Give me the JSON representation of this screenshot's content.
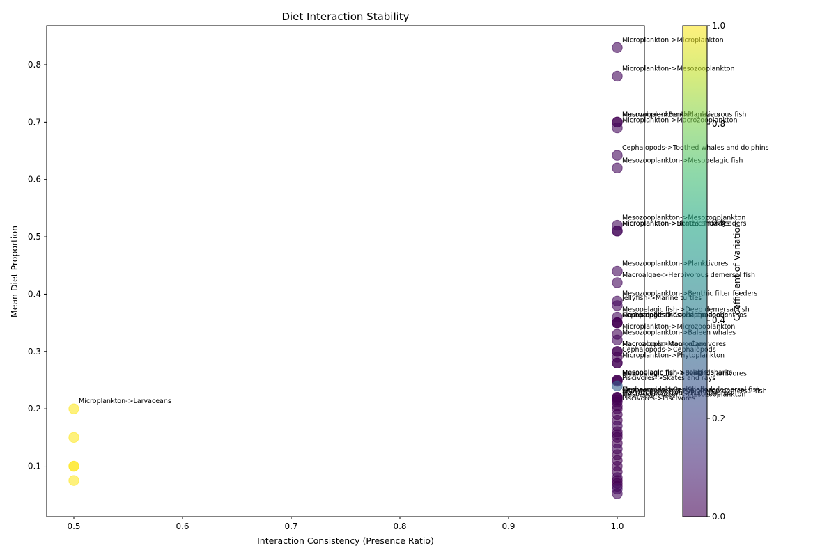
{
  "chart_data": {
    "type": "scatter",
    "title": "Diet Interaction Stability",
    "xlabel": "Interaction Consistency (Presence Ratio)",
    "ylabel": "Mean Diet Proportion",
    "xlim": [
      0.475,
      1.025
    ],
    "ylim": [
      0.012,
      0.868
    ],
    "xticks": [
      "0.5",
      "0.6",
      "0.7",
      "0.8",
      "0.9",
      "1.0"
    ],
    "yticks": [
      "0.1",
      "0.2",
      "0.3",
      "0.4",
      "0.5",
      "0.6",
      "0.7",
      "0.8"
    ],
    "grid": false,
    "colormap": "viridis",
    "colorbar": {
      "label": "Coefficient of Variation",
      "range": [
        0.0,
        1.0
      ],
      "ticks": [
        "0.0",
        "0.2",
        "0.4",
        "0.6",
        "0.8",
        "1.0"
      ]
    },
    "points": [
      {
        "x": 0.5,
        "y": 0.2,
        "cv": 1.0,
        "label": "Microplankton->Larvaceans"
      },
      {
        "x": 0.5,
        "y": 0.15,
        "cv": 1.0
      },
      {
        "x": 0.5,
        "y": 0.1,
        "cv": 1.0
      },
      {
        "x": 0.5,
        "y": 0.1,
        "cv": 1.0
      },
      {
        "x": 0.5,
        "y": 0.075,
        "cv": 1.0
      },
      {
        "x": 1.0,
        "y": 0.83,
        "cv": 0.02,
        "label": "Microplankton->Microplankton"
      },
      {
        "x": 1.0,
        "y": 0.78,
        "cv": 0.02,
        "label": "Microplankton->Mesozooplankton"
      },
      {
        "x": 1.0,
        "y": 0.7,
        "cv": 0.0,
        "label": "Macroalgae->Benthic grazers"
      },
      {
        "x": 1.0,
        "y": 0.7,
        "cv": 0.0,
        "label": "Mesozooplankton->Planktivorous fish"
      },
      {
        "x": 1.0,
        "y": 0.69,
        "cv": 0.02,
        "label": "Microplankton->Macrozooplankton"
      },
      {
        "x": 1.0,
        "y": 0.642,
        "cv": 0.02,
        "label": "Cephalopods->Toothed whales and dolphins"
      },
      {
        "x": 1.0,
        "y": 0.62,
        "cv": 0.02,
        "label": "Mesozooplankton->Mesopelagic fish"
      },
      {
        "x": 1.0,
        "y": 0.52,
        "cv": 0.02,
        "label": "Mesozooplankton->Mesozooplankton"
      },
      {
        "x": 1.0,
        "y": 0.51,
        "cv": 0.01,
        "label": "Microplankton->Benthic filter feeders"
      },
      {
        "x": 1.0,
        "y": 0.51,
        "cv": 0.02,
        "label": "Microplankton->Skates and rays"
      },
      {
        "x": 1.0,
        "y": 0.44,
        "cv": 0.02,
        "label": "Mesozooplankton->Planktivores"
      },
      {
        "x": 1.0,
        "y": 0.42,
        "cv": 0.02,
        "label": "Macroalgae->Herbivorous demersal fish"
      },
      {
        "x": 1.0,
        "y": 0.388,
        "cv": 0.02,
        "label": "Mesozooplankton->Benthic filter feeders"
      },
      {
        "x": 1.0,
        "y": 0.38,
        "cv": 0.02,
        "label": "Jellyfish->Marine turtles"
      },
      {
        "x": 1.0,
        "y": 0.36,
        "cv": 0.02,
        "label": "Mesopelagic fish->Deep demersal fish"
      },
      {
        "x": 1.0,
        "y": 0.35,
        "cv": 0.0,
        "label": "Cephalopods->Cephalopods"
      },
      {
        "x": 1.0,
        "y": 0.35,
        "cv": 0.0,
        "label": "Macrozoobenthos->Macrozoobenthos"
      },
      {
        "x": 1.0,
        "y": 0.35,
        "cv": 0.0,
        "label": "Mesopelagic fish->Cephalopods"
      },
      {
        "x": 1.0,
        "y": 0.33,
        "cv": 0.01,
        "label": "Microplankton->Microzooplankton"
      },
      {
        "x": 1.0,
        "y": 0.32,
        "cv": 0.02,
        "label": "Mesozooplankton->Baleen whales"
      },
      {
        "x": 1.0,
        "y": 0.3,
        "cv": 0.01,
        "label": "Macrozooplankton->Carnivores"
      },
      {
        "x": 1.0,
        "y": 0.3,
        "cv": 0.0,
        "label": "Macroalgae->Macroalgae"
      },
      {
        "x": 1.0,
        "y": 0.29,
        "cv": 0.0,
        "label": "Cephalopods->Cephalopods"
      },
      {
        "x": 1.0,
        "y": 0.28,
        "cv": 0.02,
        "label": "Microplankton->Phytoplankton"
      },
      {
        "x": 1.0,
        "y": 0.28,
        "cv": 0.0
      },
      {
        "x": 1.0,
        "y": 0.25,
        "cv": 0.0,
        "label": "Mesopelagic fish->Pelagic sharks"
      },
      {
        "x": 1.0,
        "y": 0.25,
        "cv": 0.0,
        "label": "Mesopelagic fish->Seabirds"
      },
      {
        "x": 1.0,
        "y": 0.248,
        "cv": 0.0,
        "label": "Mesopelagic fish->Benthic carnivores"
      },
      {
        "x": 1.0,
        "y": 0.24,
        "cv": 0.3,
        "label": "Piscivores->Skates and rays"
      },
      {
        "x": 1.0,
        "y": 0.22,
        "cv": 0.0,
        "label": "Cephalopods->Cephalopods"
      },
      {
        "x": 1.0,
        "y": 0.22,
        "cv": 0.0,
        "label": "Mesozooplankton->Shallow demersal fish"
      },
      {
        "x": 1.0,
        "y": 0.218,
        "cv": 0.0,
        "label": "Shallow demersal fish->Deep demersal fish"
      },
      {
        "x": 1.0,
        "y": 0.215,
        "cv": 0.0,
        "label": "Macrozooplankton->Planktivores"
      },
      {
        "x": 1.0,
        "y": 0.212,
        "cv": 0.0,
        "label": "Mesozooplankton->Mesozooplankton"
      },
      {
        "x": 1.0,
        "y": 0.205,
        "cv": 0.0,
        "label": "Piscivores->Piscivores"
      },
      {
        "x": 1.0,
        "y": 0.2,
        "cv": 0.0
      },
      {
        "x": 1.0,
        "y": 0.19,
        "cv": 0.0
      },
      {
        "x": 1.0,
        "y": 0.18,
        "cv": 0.0
      },
      {
        "x": 1.0,
        "y": 0.17,
        "cv": 0.02
      },
      {
        "x": 1.0,
        "y": 0.16,
        "cv": 0.0
      },
      {
        "x": 1.0,
        "y": 0.155,
        "cv": 0.0
      },
      {
        "x": 1.0,
        "y": 0.15,
        "cv": 0.0
      },
      {
        "x": 1.0,
        "y": 0.14,
        "cv": 0.0
      },
      {
        "x": 1.0,
        "y": 0.13,
        "cv": 0.02
      },
      {
        "x": 1.0,
        "y": 0.12,
        "cv": 0.0
      },
      {
        "x": 1.0,
        "y": 0.11,
        "cv": 0.0
      },
      {
        "x": 1.0,
        "y": 0.1,
        "cv": 0.0
      },
      {
        "x": 1.0,
        "y": 0.09,
        "cv": 0.0
      },
      {
        "x": 1.0,
        "y": 0.08,
        "cv": 0.02
      },
      {
        "x": 1.0,
        "y": 0.075,
        "cv": 0.0
      },
      {
        "x": 1.0,
        "y": 0.07,
        "cv": 0.0
      },
      {
        "x": 1.0,
        "y": 0.065,
        "cv": 0.0
      },
      {
        "x": 1.0,
        "y": 0.06,
        "cv": 0.05
      },
      {
        "x": 1.0,
        "y": 0.052,
        "cv": 0.02
      }
    ]
  }
}
